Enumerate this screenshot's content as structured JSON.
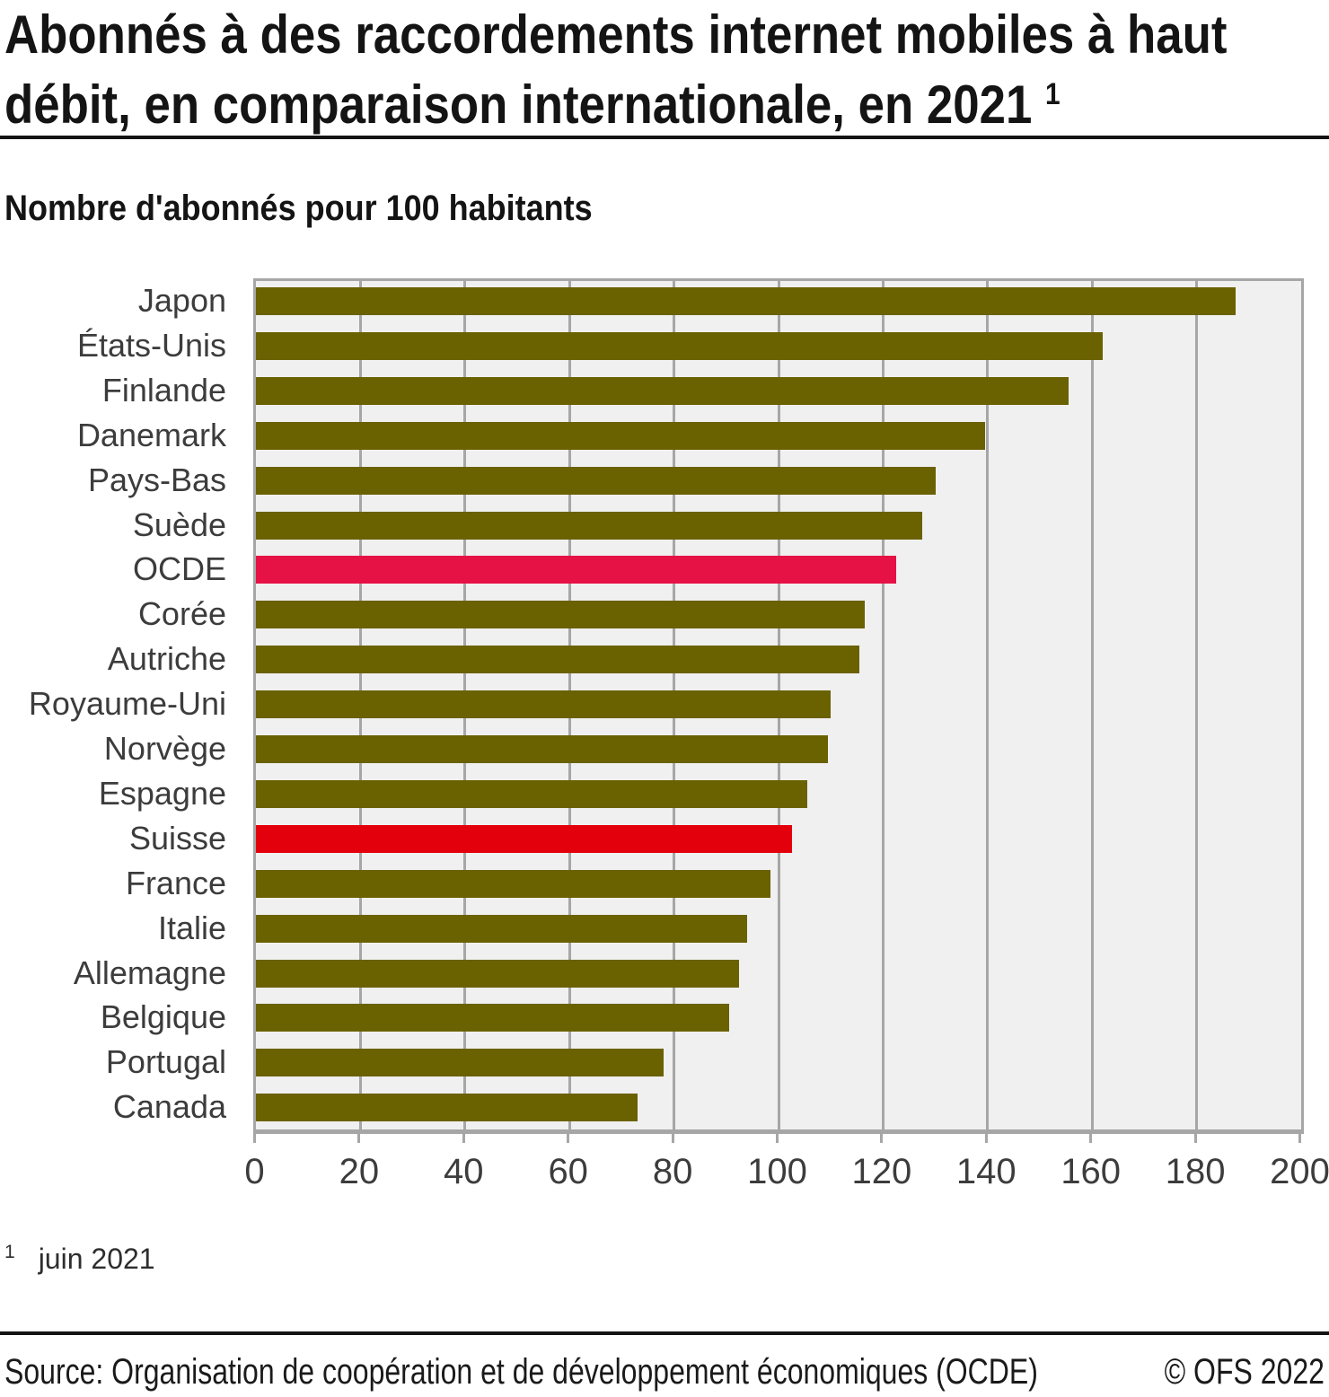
{
  "header": {
    "title_line1": "Abonnés à des raccordements internet mobiles à haut",
    "title_line2": "débit, en comparaison internationale, en 2021",
    "title_sup": "1",
    "subtitle": "Nombre d'abonnés pour 100 habitants"
  },
  "chart_data": {
    "type": "bar",
    "orientation": "horizontal",
    "title": "Abonnés à des raccordements internet mobiles à haut débit, en comparaison internationale, en 2021",
    "xlabel": "Nombre d'abonnés pour 100 habitants",
    "categories": [
      "Japon",
      "États-Unis",
      "Finlande",
      "Danemark",
      "Pays-Bas",
      "Suède",
      "OCDE",
      "Corée",
      "Autriche",
      "Royaume-Uni",
      "Norvège",
      "Espagne",
      "Suisse",
      "France",
      "Italie",
      "Allemagne",
      "Belgique",
      "Portugal",
      "Canada"
    ],
    "values": [
      187.5,
      162,
      155.5,
      139.5,
      130,
      127.5,
      122.5,
      116.5,
      115.5,
      110,
      109.5,
      105.5,
      102.5,
      98.5,
      94,
      92.5,
      90.5,
      78,
      73
    ],
    "bar_colors": [
      null,
      null,
      null,
      null,
      null,
      null,
      "#E61145",
      null,
      null,
      null,
      null,
      null,
      "#E3000C",
      null,
      null,
      null,
      null,
      null,
      null
    ],
    "default_bar_color": "#6A6100",
    "highlight_ocde_color": "#E61145",
    "highlight_suisse_color": "#E3000C",
    "xlim": [
      0,
      200
    ],
    "xticks": [
      0,
      20,
      40,
      60,
      80,
      100,
      120,
      140,
      160,
      180,
      200
    ],
    "grid": "vertical",
    "plot_background": "#F0F0F0",
    "grid_color": "#A6A6A6",
    "legend": "none"
  },
  "footnote": {
    "marker": "1",
    "text": "juin 2021"
  },
  "footer": {
    "source": "Source: Organisation de coopération et de développement économiques (OCDE)",
    "copyright": "© OFS 2022"
  }
}
